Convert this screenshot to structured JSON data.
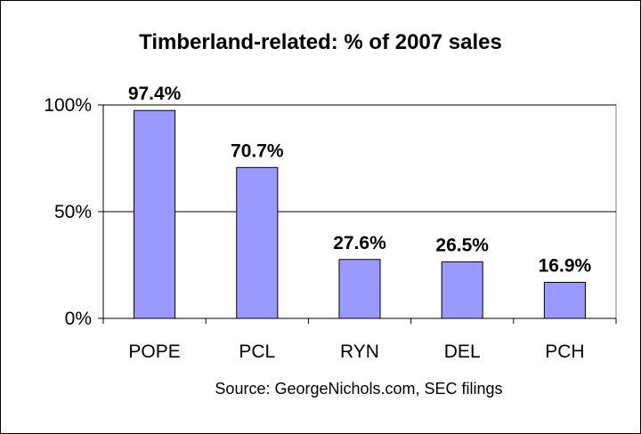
{
  "chart_data": {
    "type": "bar",
    "title": "Timberland-related: % of 2007 sales",
    "categories": [
      "POPE",
      "PCL",
      "RYN",
      "DEL",
      "PCH"
    ],
    "values": [
      97.4,
      70.7,
      27.6,
      26.5,
      16.9
    ],
    "data_labels": [
      "97.4%",
      "70.7%",
      "27.6%",
      "26.5%",
      "16.9%"
    ],
    "y_ticks": [
      {
        "value": 0,
        "label": "0%"
      },
      {
        "value": 50,
        "label": "50%"
      },
      {
        "value": 100,
        "label": "100%"
      }
    ],
    "ylim": [
      0,
      100
    ],
    "grid": true,
    "legend": "none",
    "source": "Source: GeorgeNichols.com, SEC filings",
    "colors": {
      "bar_fill": "#9999ff",
      "bar_stroke": "#000000",
      "background": "#ffffff",
      "gridline": "#000000"
    }
  }
}
